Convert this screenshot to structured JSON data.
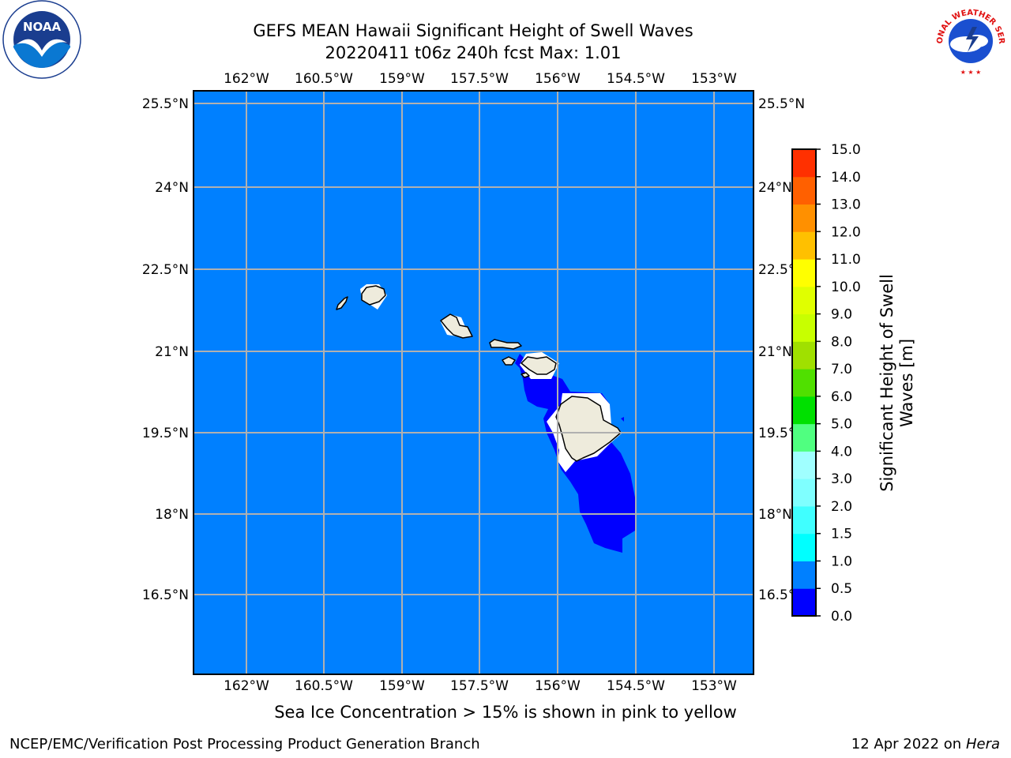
{
  "header": {
    "title_line1": "GEFS MEAN Hawaii Significant Height of Swell Waves",
    "title_line2": "20220411 t06z 240h fcst   Max: 1.01"
  },
  "map": {
    "lon_ticks": [
      "162°W",
      "160.5°W",
      "159°W",
      "157.5°W",
      "156°W",
      "154.5°W",
      "153°W"
    ],
    "lat_ticks": [
      "25.5°N",
      "24°N",
      "22.5°N",
      "21°N",
      "19.5°N",
      "18°N",
      "16.5°N"
    ],
    "ocean_color": "#0080ff",
    "low_band_color": "#0000ff",
    "land_color": "#eeebdc"
  },
  "colorbar": {
    "label": "Significant Height of Swell Waves [m]",
    "levels": [
      "0.0",
      "0.5",
      "1.0",
      "1.5",
      "2.0",
      "3.0",
      "4.0",
      "5.0",
      "6.0",
      "7.0",
      "8.0",
      "9.0",
      "10.0",
      "11.0",
      "12.0",
      "13.0",
      "14.0",
      "15.0"
    ],
    "colors": [
      "#0000ff",
      "#0080ff",
      "#00ffff",
      "#40ffff",
      "#7fffff",
      "#a0ffff",
      "#50ff80",
      "#00e000",
      "#50e000",
      "#a0e000",
      "#c8ff00",
      "#e0ff00",
      "#ffff00",
      "#ffc000",
      "#ff9000",
      "#ff6000",
      "#ff3000",
      "#ff0000"
    ]
  },
  "caption": "Sea Ice Concentration > 15% is shown in pink to yellow",
  "footer": {
    "left": "NCEP/EMC/Verification Post Processing Product Generation Branch",
    "right_date": "12 Apr 2022 on ",
    "right_host": "Hera"
  },
  "logos": {
    "noaa_text": "NOAA",
    "nws_text": "NATIONAL WEATHER SERVICE"
  }
}
